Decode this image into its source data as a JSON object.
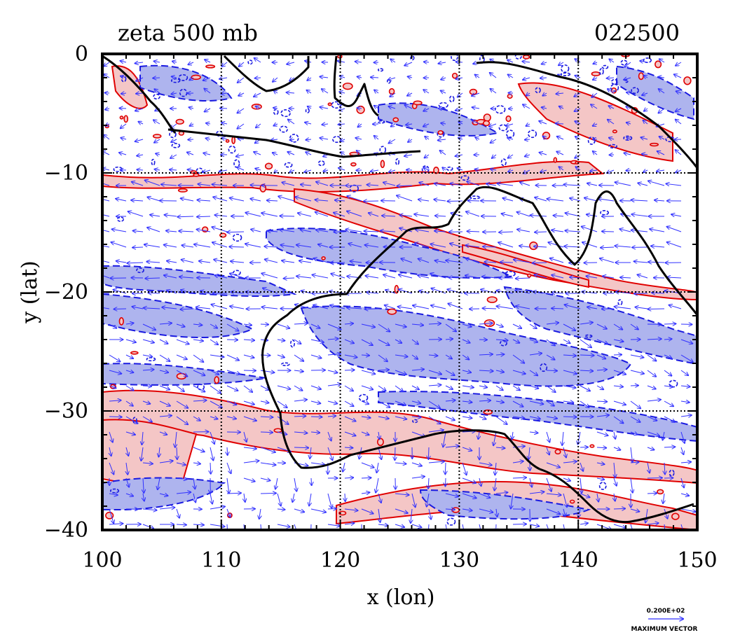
{
  "chart_data": {
    "type": "heatmap",
    "title": "zeta 500 mb",
    "time_label": "022500",
    "xlabel": "x (lon)",
    "ylabel": "y (lat)",
    "xlim": [
      100,
      150
    ],
    "ylim": [
      -40,
      0
    ],
    "x_ticks": [
      100,
      110,
      120,
      130,
      140,
      150
    ],
    "y_ticks": [
      0,
      -10,
      -20,
      -30,
      -40
    ],
    "x_tick_labels": [
      "100",
      "110",
      "120",
      "130",
      "140",
      "150"
    ],
    "y_tick_labels": [
      "0",
      "−10",
      "−20",
      "−30",
      "−40"
    ],
    "grid": true,
    "positive_color": "#f4c6c6",
    "positive_line": "#e00000",
    "negative_color": "#aeb4ee",
    "negative_line": "#1a1ae0",
    "vector_color": "#3030ff",
    "coastline_color": "#000000",
    "vector_legend": {
      "value_label": "0.200E+02",
      "caption": "MAXIMUM VECTOR"
    }
  }
}
